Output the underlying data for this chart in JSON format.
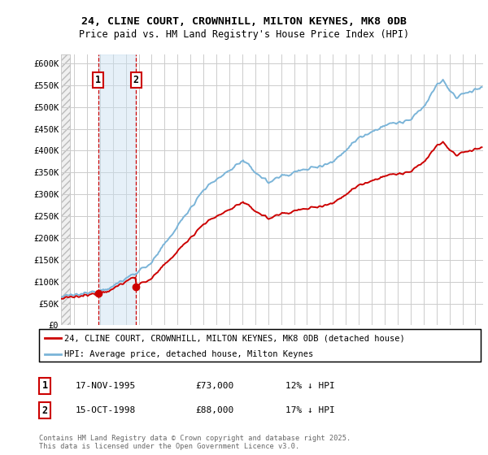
{
  "title_line1": "24, CLINE COURT, CROWNHILL, MILTON KEYNES, MK8 0DB",
  "title_line2": "Price paid vs. HM Land Registry's House Price Index (HPI)",
  "ylabel_ticks": [
    "£0",
    "£50K",
    "£100K",
    "£150K",
    "£200K",
    "£250K",
    "£300K",
    "£350K",
    "£400K",
    "£450K",
    "£500K",
    "£550K",
    "£600K"
  ],
  "ylim": [
    0,
    620000
  ],
  "yticks": [
    0,
    50000,
    100000,
    150000,
    200000,
    250000,
    300000,
    350000,
    400000,
    450000,
    500000,
    550000,
    600000
  ],
  "xlim_start": 1993,
  "xlim_end": 2025.6,
  "sale1_date_x": 1995.88,
  "sale1_price": 73000,
  "sale2_date_x": 1998.79,
  "sale2_price": 88000,
  "legend_line1": "24, CLINE COURT, CROWNHILL, MILTON KEYNES, MK8 0DB (detached house)",
  "legend_line2": "HPI: Average price, detached house, Milton Keynes",
  "table_row1": [
    "1",
    "17-NOV-1995",
    "£73,000",
    "12% ↓ HPI"
  ],
  "table_row2": [
    "2",
    "15-OCT-1998",
    "£88,000",
    "17% ↓ HPI"
  ],
  "footnote_line1": "Contains HM Land Registry data © Crown copyright and database right 2025.",
  "footnote_line2": "This data is licensed under the Open Government Licence v3.0.",
  "hpi_color": "#7ab4d8",
  "price_color": "#cc0000",
  "sale_marker_color": "#cc0000",
  "vline_color": "#cc0000",
  "shade_color": "#c8dff0",
  "grid_color": "#cccccc",
  "hatch_color": "#dddddd"
}
